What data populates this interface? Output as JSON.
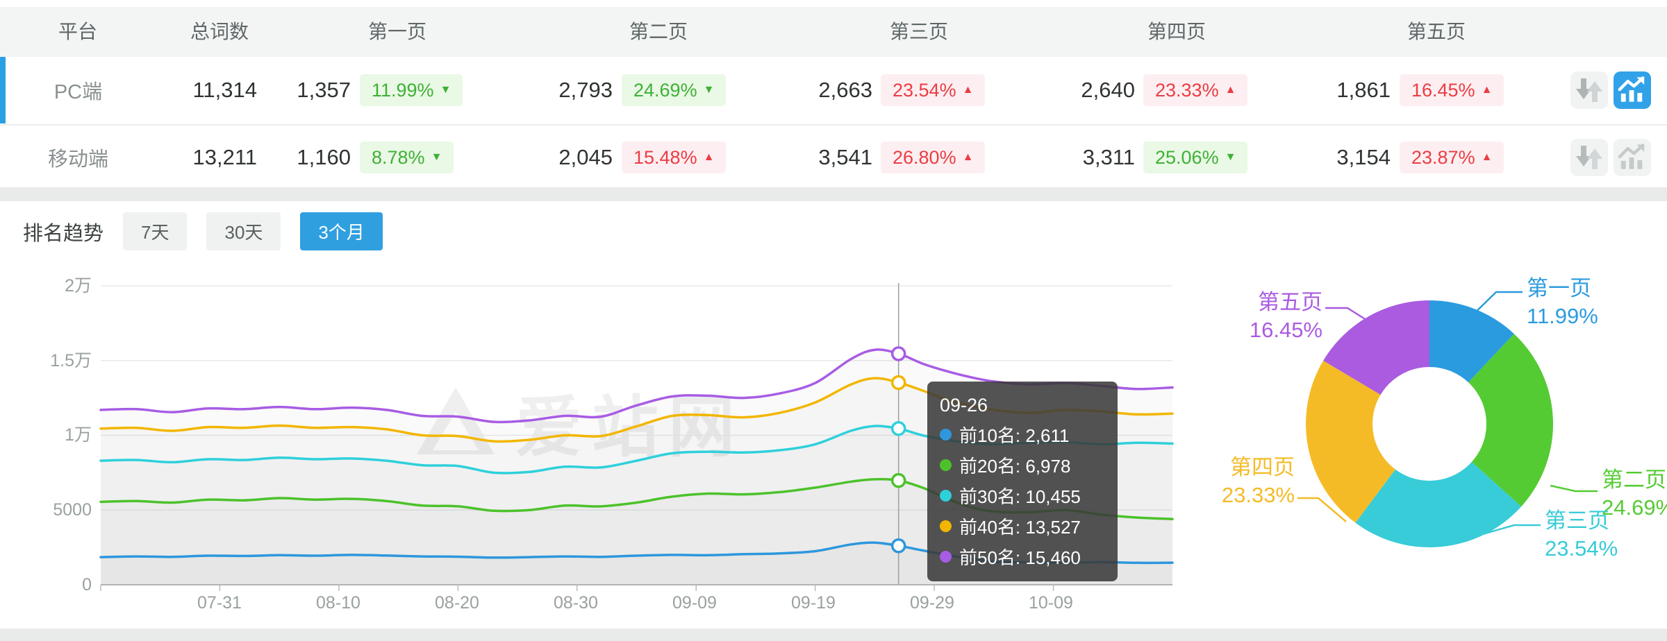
{
  "table": {
    "headers": [
      "平台",
      "总词数",
      "第一页",
      "第二页",
      "第三页",
      "第四页",
      "第五页"
    ],
    "rows": [
      {
        "platform": "PC端",
        "total": "11,314",
        "selected": true,
        "pages": [
          {
            "count": "1,357",
            "pct": "11.99%",
            "arrow": "▼",
            "tone": "green"
          },
          {
            "count": "2,793",
            "pct": "24.69%",
            "arrow": "▼",
            "tone": "green"
          },
          {
            "count": "2,663",
            "pct": "23.54%",
            "arrow": "▲",
            "tone": "red"
          },
          {
            "count": "2,640",
            "pct": "23.33%",
            "arrow": "▲",
            "tone": "red"
          },
          {
            "count": "1,861",
            "pct": "16.45%",
            "arrow": "▲",
            "tone": "red"
          }
        ],
        "chart_button_active": true
      },
      {
        "platform": "移动端",
        "total": "13,211",
        "selected": false,
        "pages": [
          {
            "count": "1,160",
            "pct": "8.78%",
            "arrow": "▼",
            "tone": "green"
          },
          {
            "count": "2,045",
            "pct": "15.48%",
            "arrow": "▲",
            "tone": "red"
          },
          {
            "count": "3,541",
            "pct": "26.80%",
            "arrow": "▲",
            "tone": "red"
          },
          {
            "count": "3,311",
            "pct": "25.06%",
            "arrow": "▼",
            "tone": "green"
          },
          {
            "count": "3,154",
            "pct": "23.87%",
            "arrow": "▲",
            "tone": "red"
          }
        ],
        "chart_button_active": false
      }
    ]
  },
  "trend": {
    "label": "排名趋势",
    "tabs": [
      {
        "label": "7天",
        "active": false
      },
      {
        "label": "30天",
        "active": false
      },
      {
        "label": "3个月",
        "active": true
      }
    ]
  },
  "watermark": "爱站网",
  "tooltip": {
    "date": "09-26",
    "items": [
      {
        "text": "前10名: 2,611",
        "color": "#2e97dd"
      },
      {
        "text": "前20名: 6,978",
        "color": "#4cc22a"
      },
      {
        "text": "前30名: 10,455",
        "color": "#2ed0da"
      },
      {
        "text": "前40名: 13,527",
        "color": "#f2b600"
      },
      {
        "text": "前50名: 15,460",
        "color": "#a85ce4"
      }
    ]
  },
  "chart_data": [
    {
      "type": "line",
      "title": "排名趋势",
      "period": "3个月",
      "x_axis": {
        "start_date": "07-21",
        "end_date": "10-19",
        "tick_labels": [
          "07-31",
          "08-10",
          "08-20",
          "08-30",
          "09-09",
          "09-19",
          "09-29",
          "10-09"
        ],
        "tick_days": [
          10,
          20,
          30,
          40,
          50,
          60,
          70,
          80
        ]
      },
      "y_axis": {
        "min": 0,
        "max": 20000,
        "tick_labels_top_to_bottom": [
          "2万",
          "1.5万",
          "1万",
          "5000",
          "0"
        ]
      },
      "grid": true,
      "legend": "none (values shown in hover tooltip)",
      "days": [
        0,
        3,
        6,
        9,
        12,
        15,
        18,
        21,
        24,
        27,
        30,
        33,
        36,
        39,
        42,
        45,
        48,
        51,
        54,
        57,
        60,
        63,
        65,
        67,
        69,
        71,
        73,
        75,
        78,
        81,
        84,
        87,
        90
      ],
      "series": [
        {
          "name": "前10名",
          "color": "#2e97dd",
          "values": [
            1850,
            1900,
            1870,
            1950,
            1930,
            1980,
            1950,
            2000,
            1960,
            1900,
            1880,
            1820,
            1850,
            1900,
            1870,
            1950,
            2000,
            1980,
            2050,
            2100,
            2250,
            2700,
            2820,
            2611,
            2300,
            2000,
            1750,
            1550,
            1500,
            1480,
            1520,
            1470,
            1480
          ]
        },
        {
          "name": "前20名",
          "color": "#4cc22a",
          "values": [
            5550,
            5600,
            5500,
            5700,
            5650,
            5800,
            5700,
            5750,
            5600,
            5300,
            5250,
            4950,
            5000,
            5300,
            5250,
            5500,
            5900,
            6100,
            6050,
            6200,
            6500,
            6900,
            7060,
            6978,
            6500,
            5800,
            5200,
            4900,
            4850,
            5000,
            4700,
            4500,
            4400
          ]
        },
        {
          "name": "前30名",
          "color": "#2ed0da",
          "values": [
            8300,
            8350,
            8200,
            8400,
            8350,
            8500,
            8400,
            8450,
            8300,
            8000,
            7950,
            7500,
            7550,
            7900,
            7850,
            8300,
            8800,
            8900,
            8850,
            9000,
            9400,
            10300,
            10620,
            10455,
            10000,
            9700,
            9500,
            9400,
            9500,
            9550,
            9400,
            9500,
            9450
          ]
        },
        {
          "name": "前40名",
          "color": "#f2b600",
          "values": [
            10450,
            10500,
            10300,
            10550,
            10500,
            10650,
            10500,
            10550,
            10400,
            10000,
            9950,
            9600,
            9700,
            10000,
            9950,
            10600,
            11300,
            11350,
            11200,
            11500,
            12200,
            13400,
            13820,
            13527,
            13000,
            12400,
            12000,
            11700,
            11500,
            11700,
            11600,
            11400,
            11450
          ]
        },
        {
          "name": "前50名",
          "color": "#a85ce4",
          "values": [
            11700,
            11750,
            11550,
            11800,
            11750,
            11900,
            11750,
            11850,
            11700,
            11300,
            11250,
            10900,
            11000,
            11300,
            11250,
            12000,
            12600,
            12650,
            12500,
            12800,
            13500,
            15100,
            15720,
            15460,
            14800,
            14300,
            13900,
            13600,
            13400,
            13500,
            13300,
            13100,
            13200
          ]
        }
      ],
      "highlight": {
        "date": "09-26",
        "day": 67,
        "values": [
          2611,
          6978,
          10455,
          13527,
          15460
        ]
      }
    },
    {
      "type": "donut",
      "labels": [
        "第一页",
        "第二页",
        "第三页",
        "第四页",
        "第五页"
      ],
      "values_pct": [
        11.99,
        24.69,
        23.54,
        23.33,
        16.45
      ],
      "pct_labels": [
        "11.99%",
        "24.69%",
        "23.54%",
        "23.33%",
        "16.45%"
      ],
      "colors": [
        "#2b9bdf",
        "#55cb33",
        "#38cbd8",
        "#f5bb27",
        "#aa5be0"
      ],
      "start_angle": "top",
      "direction": "clockwise",
      "inner_radius_ratio": 0.46
    }
  ]
}
